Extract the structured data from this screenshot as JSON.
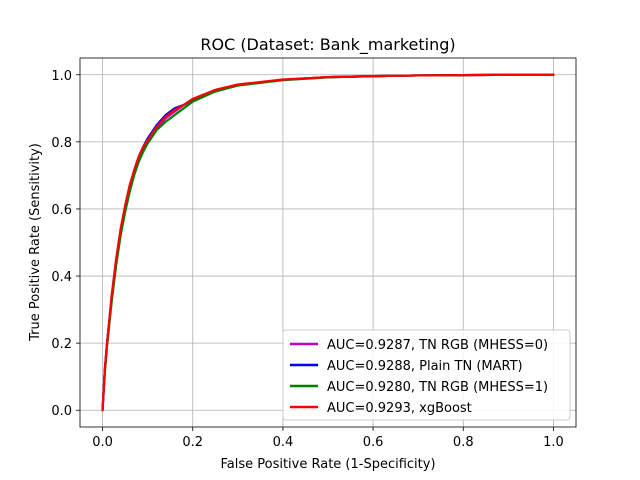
{
  "chart_data": {
    "type": "line",
    "title": "ROC (Dataset: Bank_marketing)",
    "xlabel": "False Positive Rate (1-Specificity)",
    "ylabel": "True Positive Rate (Sensitivity)",
    "xlim": [
      -0.05,
      1.05
    ],
    "ylim": [
      -0.05,
      1.05
    ],
    "xticks": [
      "0.0",
      "0.2",
      "0.4",
      "0.6",
      "0.8",
      "1.0"
    ],
    "yticks": [
      "0.0",
      "0.2",
      "0.4",
      "0.6",
      "0.8",
      "1.0"
    ],
    "grid": true,
    "legend_position": "lower-right",
    "series": [
      {
        "name": "AUC=0.9287, TN RGB (MHESS=0)",
        "color": "#bf00bf",
        "x": [
          0.0,
          0.005,
          0.01,
          0.02,
          0.03,
          0.04,
          0.05,
          0.06,
          0.07,
          0.08,
          0.09,
          0.1,
          0.12,
          0.14,
          0.16,
          0.18,
          0.2,
          0.25,
          0.3,
          0.4,
          0.5,
          0.6,
          0.7,
          0.8,
          0.9,
          1.0
        ],
        "y": [
          0.0,
          0.12,
          0.2,
          0.33,
          0.44,
          0.53,
          0.6,
          0.66,
          0.71,
          0.75,
          0.78,
          0.8,
          0.84,
          0.87,
          0.89,
          0.91,
          0.925,
          0.953,
          0.97,
          0.985,
          0.993,
          0.996,
          0.998,
          0.999,
          1.0,
          1.0
        ]
      },
      {
        "name": "AUC=0.9288, Plain TN (MART)",
        "color": "#0000ff",
        "x": [
          0.0,
          0.005,
          0.01,
          0.02,
          0.03,
          0.04,
          0.05,
          0.06,
          0.07,
          0.08,
          0.09,
          0.1,
          0.12,
          0.14,
          0.16,
          0.18,
          0.2,
          0.25,
          0.3,
          0.4,
          0.5,
          0.6,
          0.7,
          0.8,
          0.9,
          1.0
        ],
        "y": [
          0.0,
          0.12,
          0.2,
          0.33,
          0.44,
          0.53,
          0.6,
          0.66,
          0.715,
          0.755,
          0.785,
          0.81,
          0.85,
          0.88,
          0.9,
          0.91,
          0.925,
          0.953,
          0.97,
          0.985,
          0.993,
          0.996,
          0.998,
          0.999,
          1.0,
          1.0
        ]
      },
      {
        "name": "AUC=0.9280, TN RGB (MHESS=1)",
        "color": "#008000",
        "x": [
          0.0,
          0.005,
          0.01,
          0.02,
          0.03,
          0.04,
          0.05,
          0.06,
          0.07,
          0.08,
          0.09,
          0.1,
          0.12,
          0.14,
          0.16,
          0.18,
          0.2,
          0.25,
          0.3,
          0.4,
          0.5,
          0.6,
          0.7,
          0.8,
          0.9,
          1.0
        ],
        "y": [
          0.0,
          0.11,
          0.19,
          0.32,
          0.43,
          0.52,
          0.59,
          0.65,
          0.7,
          0.74,
          0.77,
          0.795,
          0.835,
          0.86,
          0.88,
          0.9,
          0.92,
          0.95,
          0.968,
          0.984,
          0.992,
          0.996,
          0.998,
          0.999,
          1.0,
          1.0
        ]
      },
      {
        "name": "AUC=0.9293, xgBoost",
        "color": "#ff0000",
        "x": [
          0.0,
          0.005,
          0.01,
          0.02,
          0.03,
          0.04,
          0.05,
          0.06,
          0.07,
          0.08,
          0.09,
          0.1,
          0.12,
          0.14,
          0.16,
          0.18,
          0.2,
          0.25,
          0.3,
          0.4,
          0.5,
          0.6,
          0.7,
          0.8,
          0.9,
          1.0
        ],
        "y": [
          0.0,
          0.12,
          0.2,
          0.34,
          0.45,
          0.54,
          0.61,
          0.67,
          0.715,
          0.755,
          0.785,
          0.805,
          0.845,
          0.875,
          0.895,
          0.91,
          0.928,
          0.955,
          0.971,
          0.986,
          0.993,
          0.996,
          0.998,
          0.999,
          1.0,
          1.0
        ]
      }
    ]
  }
}
